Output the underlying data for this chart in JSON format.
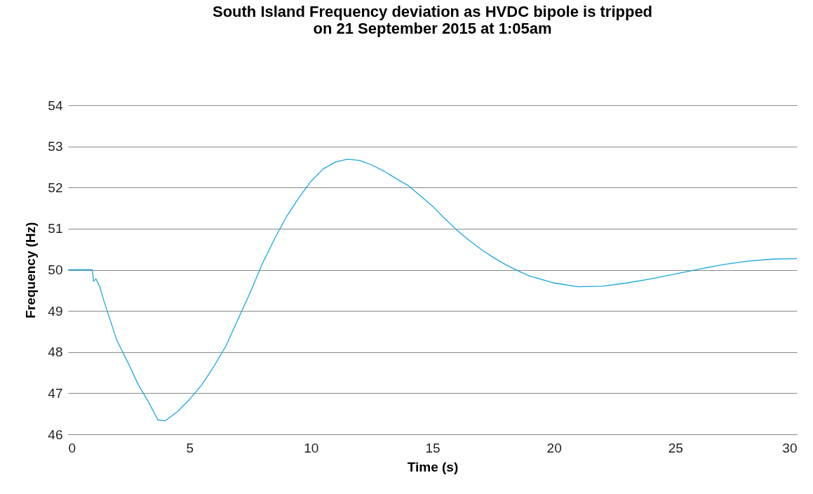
{
  "chart_data": {
    "type": "line",
    "title": [
      "South Island Frequency deviation as HVDC bipole is tripped",
      "on 21 September 2015 at 1:05am"
    ],
    "xlabel": "Time (s)",
    "ylabel": "Frequency (Hz)",
    "xlim": [
      0,
      30
    ],
    "xticks": [
      0,
      5,
      10,
      15,
      20,
      25,
      30
    ],
    "ylim": [
      46,
      54
    ],
    "yticks": [
      46,
      47,
      48,
      49,
      50,
      51,
      52,
      53,
      54
    ],
    "grid": "y",
    "marker": "none",
    "line_style": "solid",
    "series": [
      {
        "color": "#1aa7de",
        "x": [
          0,
          1.0,
          1.05,
          1.15,
          1.3,
          1.5,
          2.0,
          2.5,
          2.9,
          3.3,
          3.7,
          4.0,
          4.5,
          5.0,
          5.5,
          6.0,
          6.5,
          7.0,
          7.5,
          8.0,
          8.5,
          9.0,
          9.5,
          10,
          10.5,
          11,
          11.5,
          12,
          12.5,
          13,
          13.5,
          14,
          14.5,
          15,
          15.5,
          16,
          16.5,
          17,
          17.5,
          18,
          18.5,
          19,
          20,
          21,
          22,
          23,
          24,
          25,
          26,
          27,
          28,
          29,
          30
        ],
        "values": [
          50,
          50,
          49.72,
          49.78,
          49.6,
          49.2,
          48.3,
          47.7,
          47.2,
          46.8,
          46.35,
          46.33,
          46.55,
          46.85,
          47.2,
          47.65,
          48.15,
          48.8,
          49.45,
          50.15,
          50.75,
          51.3,
          51.75,
          52.15,
          52.45,
          52.62,
          52.69,
          52.66,
          52.55,
          52.4,
          52.22,
          52.05,
          51.8,
          51.55,
          51.25,
          50.97,
          50.72,
          50.5,
          50.3,
          50.13,
          49.98,
          49.85,
          49.68,
          49.59,
          49.6,
          49.68,
          49.78,
          49.9,
          50.02,
          50.13,
          50.21,
          50.26,
          50.27
        ]
      }
    ]
  }
}
